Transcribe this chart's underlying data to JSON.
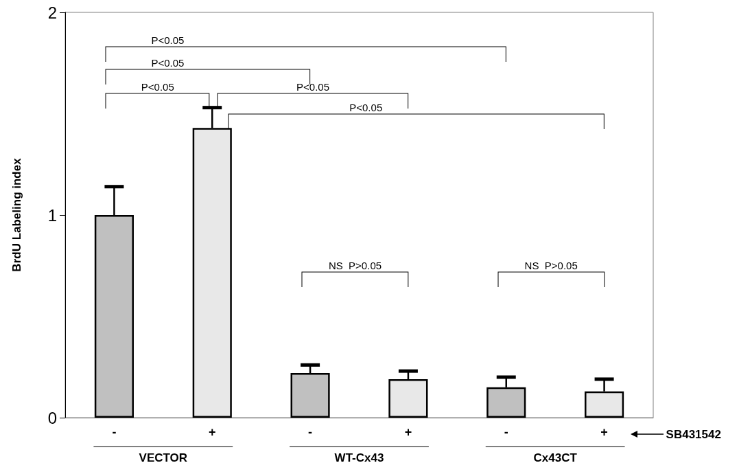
{
  "chart_data": {
    "type": "bar",
    "ylabel": "BrdU Labeling index",
    "categories": [
      "-",
      "+",
      "-",
      "+",
      "-",
      "+"
    ],
    "values": [
      1.0,
      1.43,
      0.22,
      0.19,
      0.15,
      0.13
    ],
    "colors": [
      "#c0c0c0",
      "#e8e8e8",
      "#c0c0c0",
      "#e8e8e8",
      "#c0c0c0",
      "#e8e8e8"
    ],
    "errors": [
      [
        1.0,
        1.14
      ],
      [
        1.43,
        1.53
      ],
      [
        0.22,
        0.26
      ],
      [
        0.19,
        0.23
      ],
      [
        0.15,
        0.2
      ],
      [
        0.13,
        0.19
      ]
    ],
    "ylim": [
      0,
      2
    ],
    "yticks": [
      0,
      1,
      2
    ],
    "annotations": [
      "P<0.05",
      "P<0.05",
      "P<0.05",
      "P<0.05",
      "P<0.05",
      "NS  P>0.05",
      "NS  P>0.05",
      "SB431542",
      "VECTOR",
      "WT-Cx43",
      "Cx43CT"
    ]
  }
}
